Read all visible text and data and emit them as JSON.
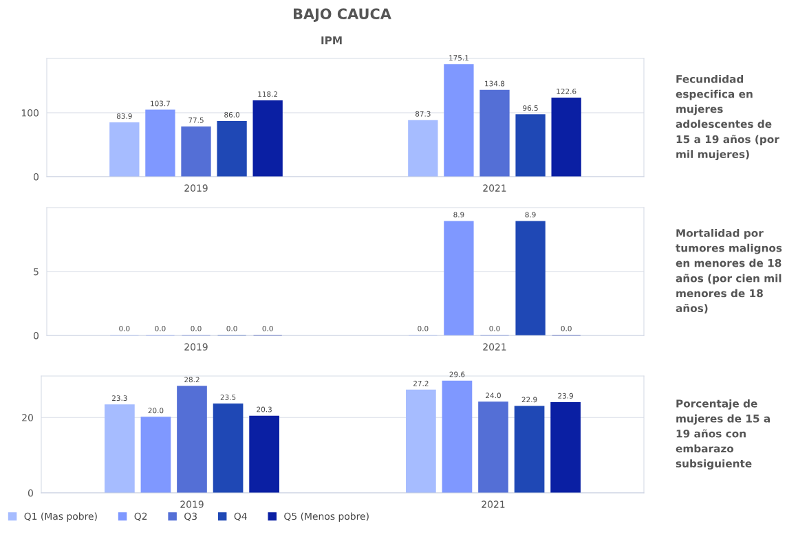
{
  "chart_data": [
    {
      "type": "bar",
      "title": "BAJO CAUCA",
      "subtitle": "IPM",
      "ylabel": "Fecundidad especifica en mujeres adolescentes de 15 a 19 años (por mil mujeres)",
      "categories": [
        "2019",
        "2021"
      ],
      "ylim": [
        0,
        185
      ],
      "yticks": [
        0,
        100
      ],
      "grid": "y",
      "series": [
        {
          "color": "#a6bcff",
          "values": [
            83.9,
            87.3
          ],
          "value_labels": [
            "83.9",
            "87.3"
          ]
        },
        {
          "color": "#7f98ff",
          "values": [
            103.7,
            175.1
          ],
          "value_labels": [
            "103.7",
            "175.1"
          ]
        },
        {
          "color": "#546fd6",
          "values": [
            77.5,
            134.8
          ],
          "value_labels": [
            "77.5",
            "134.8"
          ]
        },
        {
          "color": "#1f48b5",
          "values": [
            86.0,
            96.5
          ],
          "value_labels": [
            "86.0",
            "96.5"
          ]
        },
        {
          "color": "#0a1fa3",
          "values": [
            118.2,
            122.6
          ],
          "value_labels": [
            "118.2",
            "122.6"
          ]
        }
      ]
    },
    {
      "type": "bar",
      "ylabel": "Mortalidad por tumores malignos en menores de 18 años (por cien mil menores de 18 años)",
      "categories": [
        "2019",
        "2021"
      ],
      "ylim": [
        0,
        10
      ],
      "yticks": [
        0,
        5
      ],
      "grid": "y",
      "series": [
        {
          "color": "#a6bcff",
          "values": [
            0.0,
            0.0
          ],
          "value_labels": [
            "0.0",
            "0.0"
          ]
        },
        {
          "color": "#7f98ff",
          "values": [
            0.0,
            8.9
          ],
          "value_labels": [
            "0.0",
            "8.9"
          ]
        },
        {
          "color": "#546fd6",
          "values": [
            0.0,
            0.0
          ],
          "value_labels": [
            "0.0",
            "0.0"
          ]
        },
        {
          "color": "#1f48b5",
          "values": [
            0.0,
            8.9
          ],
          "value_labels": [
            "0.0",
            "8.9"
          ]
        },
        {
          "color": "#0a1fa3",
          "values": [
            0.0,
            0.0
          ],
          "value_labels": [
            "0.0",
            "0.0"
          ]
        }
      ]
    },
    {
      "type": "bar",
      "ylabel": "Porcentaje de mujeres de 15 a 19 años con embarazo subsiguiente",
      "categories": [
        "2019",
        "2021"
      ],
      "ylim": [
        0,
        31
      ],
      "yticks": [
        0,
        20
      ],
      "grid": "y",
      "legend": "bottom left",
      "series": [
        {
          "name": "Q1 (Mas pobre)",
          "color": "#a6bcff",
          "values": [
            23.3,
            27.2
          ],
          "value_labels": [
            "23.3",
            "27.2"
          ]
        },
        {
          "name": "Q2",
          "color": "#7f98ff",
          "values": [
            20.0,
            29.6
          ],
          "value_labels": [
            "20.0",
            "29.6"
          ]
        },
        {
          "name": "Q3",
          "color": "#546fd6",
          "values": [
            28.2,
            24.0
          ],
          "value_labels": [
            "28.2",
            "24.0"
          ]
        },
        {
          "name": "Q4",
          "color": "#1f48b5",
          "values": [
            23.5,
            22.9
          ],
          "value_labels": [
            "23.5",
            "22.9"
          ]
        },
        {
          "name": "Q5 (Menos pobre)",
          "color": "#0a1fa3",
          "values": [
            20.3,
            23.9
          ],
          "value_labels": [
            "20.3",
            "23.9"
          ]
        }
      ]
    }
  ]
}
